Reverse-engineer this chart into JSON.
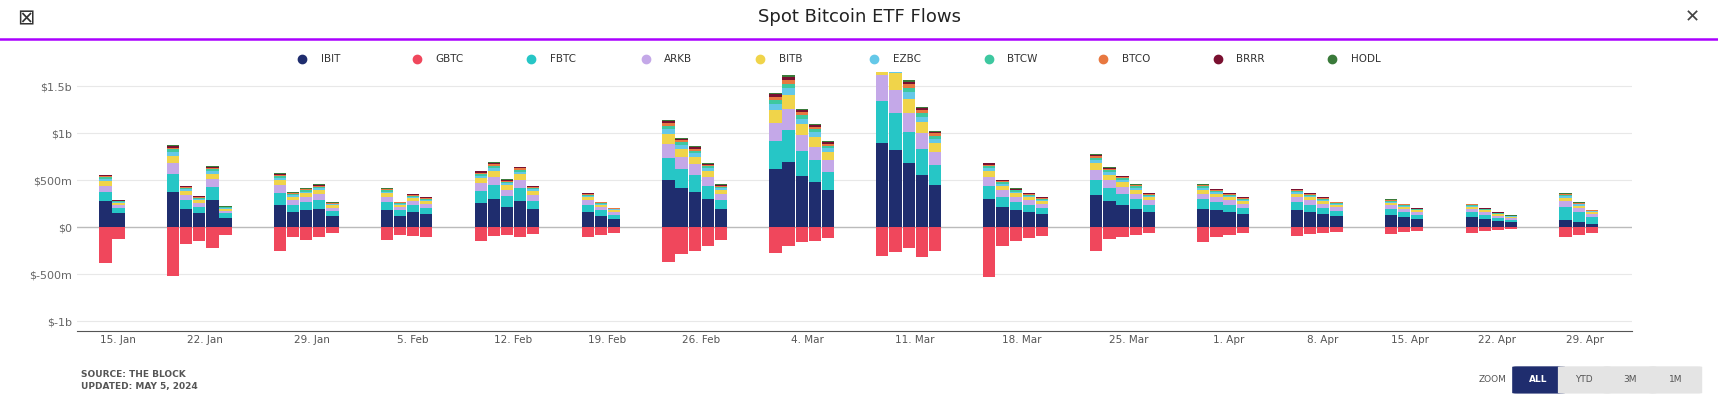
{
  "title": "Spot Bitcoin ETF Flows",
  "legend_items": [
    "IBIT",
    "GBTC",
    "FBTC",
    "ARKB",
    "BITB",
    "EZBC",
    "BTCW",
    "BTCO",
    "BRRR",
    "HODL"
  ],
  "legend_colors": [
    "#1f2d6e",
    "#f0475c",
    "#26c6c6",
    "#c4a8e8",
    "#f0d44a",
    "#64c8e8",
    "#3ec8a0",
    "#e87840",
    "#7a1030",
    "#3a7a3a"
  ],
  "x_labels": [
    "15. Jan",
    "22. Jan",
    "29. Jan",
    "5. Feb",
    "12. Feb",
    "19. Feb",
    "26. Feb",
    "4. Mar",
    "11. Mar",
    "18. Mar",
    "25. Mar",
    "1. Apr",
    "8. Apr",
    "15. Apr",
    "22. Apr",
    "29. Apr"
  ],
  "ytick_labels": [
    "$-1b",
    "$-500m",
    "$0",
    "$500m",
    "$1b",
    "$1.5b"
  ],
  "yticks": [
    -1000,
    -500,
    0,
    500,
    1000,
    1500
  ],
  "source_text": "SOURCE: THE BLOCK\nUPDATED: MAY 5, 2024",
  "purple_line_color": "#aa00ff",
  "bg_color": "#ffffff",
  "grid_color": "#e8e8e8",
  "weekly_data": {
    "15. Jan": [
      {
        "IBIT": 280,
        "GBTC": -380,
        "FBTC": 100,
        "ARKB": 60,
        "BITB": 50,
        "EZBC": 25,
        "BTCW": 18,
        "BTCO": 12,
        "BRRR": 8,
        "HODL": 5
      },
      {
        "IBIT": 150,
        "GBTC": -120,
        "FBTC": 60,
        "ARKB": 30,
        "BITB": 20,
        "EZBC": 10,
        "BTCW": 8,
        "BTCO": 5,
        "BRRR": 4,
        "HODL": 3
      }
    ],
    "22. Jan": [
      {
        "IBIT": 380,
        "GBTC": -520,
        "FBTC": 190,
        "ARKB": 110,
        "BITB": 80,
        "EZBC": 40,
        "BTCW": 28,
        "BTCO": 20,
        "BRRR": 15,
        "HODL": 10
      },
      {
        "IBIT": 200,
        "GBTC": -180,
        "FBTC": 90,
        "ARKB": 55,
        "BITB": 40,
        "EZBC": 18,
        "BTCW": 14,
        "BTCO": 10,
        "BRRR": 8,
        "HODL": 5
      },
      {
        "IBIT": 150,
        "GBTC": -140,
        "FBTC": 70,
        "ARKB": 40,
        "BITB": 30,
        "EZBC": 15,
        "BTCW": 10,
        "BTCO": 8,
        "BRRR": 6,
        "HODL": 4
      },
      {
        "IBIT": 290,
        "GBTC": -220,
        "FBTC": 140,
        "ARKB": 80,
        "BITB": 60,
        "EZBC": 28,
        "BTCW": 20,
        "BTCO": 15,
        "BRRR": 12,
        "HODL": 8
      },
      {
        "IBIT": 100,
        "GBTC": -80,
        "FBTC": 50,
        "ARKB": 28,
        "BITB": 18,
        "EZBC": 9,
        "BTCW": 7,
        "BTCO": 5,
        "BRRR": 4,
        "HODL": 2
      }
    ],
    "29. Jan": [
      {
        "IBIT": 240,
        "GBTC": -250,
        "FBTC": 130,
        "ARKB": 80,
        "BITB": 55,
        "EZBC": 25,
        "BTCW": 18,
        "BTCO": 13,
        "BRRR": 10,
        "HODL": 7
      },
      {
        "IBIT": 160,
        "GBTC": -100,
        "FBTC": 80,
        "ARKB": 50,
        "BITB": 35,
        "EZBC": 16,
        "BTCW": 12,
        "BTCO": 9,
        "BRRR": 7,
        "HODL": 4
      },
      {
        "IBIT": 180,
        "GBTC": -130,
        "FBTC": 90,
        "ARKB": 55,
        "BITB": 38,
        "EZBC": 18,
        "BTCW": 13,
        "BTCO": 10,
        "BRRR": 8,
        "HODL": 5
      },
      {
        "IBIT": 200,
        "GBTC": -100,
        "FBTC": 95,
        "ARKB": 60,
        "BITB": 42,
        "EZBC": 20,
        "BTCW": 14,
        "BTCO": 11,
        "BRRR": 9,
        "HODL": 6
      },
      {
        "IBIT": 120,
        "GBTC": -60,
        "FBTC": 55,
        "ARKB": 35,
        "BITB": 24,
        "EZBC": 11,
        "BTCW": 8,
        "BTCO": 6,
        "BRRR": 5,
        "HODL": 3
      }
    ],
    "5. Feb": [
      {
        "IBIT": 180,
        "GBTC": -130,
        "FBTC": 90,
        "ARKB": 55,
        "BITB": 38,
        "EZBC": 18,
        "BTCW": 13,
        "BTCO": 10,
        "BRRR": 8,
        "HODL": 5
      },
      {
        "IBIT": 120,
        "GBTC": -80,
        "FBTC": 60,
        "ARKB": 36,
        "BITB": 25,
        "EZBC": 12,
        "BTCW": 8,
        "BTCO": 6,
        "BRRR": 5,
        "HODL": 3
      },
      {
        "IBIT": 160,
        "GBTC": -90,
        "FBTC": 75,
        "ARKB": 45,
        "BITB": 32,
        "EZBC": 15,
        "BTCW": 11,
        "BTCO": 8,
        "BRRR": 6,
        "HODL": 4
      },
      {
        "IBIT": 140,
        "GBTC": -100,
        "FBTC": 70,
        "ARKB": 42,
        "BITB": 29,
        "EZBC": 14,
        "BTCW": 10,
        "BTCO": 7,
        "BRRR": 6,
        "HODL": 4
      }
    ],
    "12. Feb": [
      {
        "IBIT": 260,
        "GBTC": -140,
        "FBTC": 130,
        "ARKB": 80,
        "BITB": 55,
        "EZBC": 26,
        "BTCW": 18,
        "BTCO": 14,
        "BRRR": 11,
        "HODL": 7
      },
      {
        "IBIT": 300,
        "GBTC": -90,
        "FBTC": 150,
        "ARKB": 90,
        "BITB": 64,
        "EZBC": 30,
        "BTCW": 21,
        "BTCO": 16,
        "BRRR": 12,
        "HODL": 8
      },
      {
        "IBIT": 220,
        "GBTC": -80,
        "FBTC": 110,
        "ARKB": 68,
        "BITB": 48,
        "EZBC": 22,
        "BTCW": 16,
        "BTCO": 12,
        "BRRR": 9,
        "HODL": 6
      },
      {
        "IBIT": 280,
        "GBTC": -100,
        "FBTC": 140,
        "ARKB": 85,
        "BITB": 60,
        "EZBC": 28,
        "BTCW": 20,
        "BTCO": 15,
        "BRRR": 11,
        "HODL": 7
      },
      {
        "IBIT": 190,
        "GBTC": -70,
        "FBTC": 95,
        "ARKB": 58,
        "BITB": 41,
        "EZBC": 19,
        "BTCW": 14,
        "BTCO": 10,
        "BRRR": 8,
        "HODL": 5
      }
    ],
    "19. Feb": [
      {
        "IBIT": 160,
        "GBTC": -100,
        "FBTC": 80,
        "ARKB": 48,
        "BITB": 34,
        "EZBC": 16,
        "BTCW": 11,
        "BTCO": 9,
        "BRRR": 7,
        "HODL": 4
      },
      {
        "IBIT": 120,
        "GBTC": -80,
        "FBTC": 60,
        "ARKB": 36,
        "BITB": 25,
        "EZBC": 12,
        "BTCW": 8,
        "BTCO": 6,
        "BRRR": 5,
        "HODL": 3
      },
      {
        "IBIT": 90,
        "GBTC": -60,
        "FBTC": 45,
        "ARKB": 27,
        "BITB": 19,
        "EZBC": 9,
        "BTCW": 6,
        "BTCO": 5,
        "BRRR": 4,
        "HODL": 2
      }
    ],
    "26. Feb": [
      {
        "IBIT": 500,
        "GBTC": -370,
        "FBTC": 240,
        "ARKB": 150,
        "BITB": 105,
        "EZBC": 50,
        "BTCW": 35,
        "BTCO": 26,
        "BRRR": 20,
        "HODL": 14
      },
      {
        "IBIT": 420,
        "GBTC": -280,
        "FBTC": 200,
        "ARKB": 125,
        "BITB": 88,
        "EZBC": 42,
        "BTCW": 29,
        "BTCO": 22,
        "BRRR": 17,
        "HODL": 11
      },
      {
        "IBIT": 380,
        "GBTC": -250,
        "FBTC": 180,
        "ARKB": 112,
        "BITB": 79,
        "EZBC": 38,
        "BTCW": 26,
        "BTCO": 20,
        "BRRR": 15,
        "HODL": 10
      },
      {
        "IBIT": 300,
        "GBTC": -200,
        "FBTC": 145,
        "ARKB": 90,
        "BITB": 63,
        "EZBC": 30,
        "BTCW": 21,
        "BTCO": 16,
        "BRRR": 12,
        "HODL": 8
      },
      {
        "IBIT": 200,
        "GBTC": -130,
        "FBTC": 96,
        "ARKB": 60,
        "BITB": 42,
        "EZBC": 20,
        "BTCW": 14,
        "BTCO": 11,
        "BRRR": 8,
        "HODL": 5
      }
    ],
    "4. Mar": [
      {
        "IBIT": 620,
        "GBTC": -270,
        "FBTC": 300,
        "ARKB": 190,
        "BITB": 135,
        "EZBC": 64,
        "BTCW": 44,
        "BTCO": 34,
        "BRRR": 26,
        "HODL": 17
      },
      {
        "IBIT": 700,
        "GBTC": -200,
        "FBTC": 340,
        "ARKB": 215,
        "BITB": 152,
        "EZBC": 72,
        "BTCW": 50,
        "BTCO": 38,
        "BRRR": 29,
        "HODL": 19
      },
      {
        "IBIT": 550,
        "GBTC": -160,
        "FBTC": 265,
        "ARKB": 167,
        "BITB": 118,
        "EZBC": 56,
        "BTCW": 39,
        "BTCO": 29,
        "BRRR": 22,
        "HODL": 15
      },
      {
        "IBIT": 480,
        "GBTC": -140,
        "FBTC": 232,
        "ARKB": 146,
        "BITB": 103,
        "EZBC": 49,
        "BTCW": 34,
        "BTCO": 26,
        "BRRR": 20,
        "HODL": 13
      },
      {
        "IBIT": 400,
        "GBTC": -110,
        "FBTC": 193,
        "ARKB": 122,
        "BITB": 86,
        "EZBC": 41,
        "BTCW": 28,
        "BTCO": 21,
        "BRRR": 16,
        "HODL": 11
      }
    ],
    "11. Mar": [
      {
        "IBIT": 900,
        "GBTC": -300,
        "FBTC": 440,
        "ARKB": 278,
        "BITB": 196,
        "EZBC": 93,
        "BTCW": 65,
        "BTCO": 49,
        "BRRR": 37,
        "HODL": 25
      },
      {
        "IBIT": 820,
        "GBTC": -260,
        "FBTC": 395,
        "ARKB": 250,
        "BITB": 176,
        "EZBC": 84,
        "BTCW": 58,
        "BTCO": 44,
        "BRRR": 34,
        "HODL": 22
      },
      {
        "IBIT": 680,
        "GBTC": -220,
        "FBTC": 330,
        "ARKB": 208,
        "BITB": 147,
        "EZBC": 70,
        "BTCW": 49,
        "BTCO": 37,
        "BRRR": 28,
        "HODL": 18
      },
      {
        "IBIT": 560,
        "GBTC": -310,
        "FBTC": 270,
        "ARKB": 170,
        "BITB": 120,
        "EZBC": 57,
        "BTCW": 40,
        "BTCO": 30,
        "BRRR": 23,
        "HODL": 15
      },
      {
        "IBIT": 450,
        "GBTC": -250,
        "FBTC": 215,
        "ARKB": 136,
        "BITB": 96,
        "EZBC": 46,
        "BTCW": 32,
        "BTCO": 24,
        "BRRR": 18,
        "HODL": 12
      }
    ],
    "18. Mar": [
      {
        "IBIT": 300,
        "GBTC": -530,
        "FBTC": 145,
        "ARKB": 91,
        "BITB": 64,
        "EZBC": 31,
        "BTCW": 21,
        "BTCO": 16,
        "BRRR": 12,
        "HODL": 8
      },
      {
        "IBIT": 220,
        "GBTC": -200,
        "FBTC": 107,
        "ARKB": 67,
        "BITB": 47,
        "EZBC": 22,
        "BTCW": 16,
        "BTCO": 12,
        "BRRR": 9,
        "HODL": 6
      },
      {
        "IBIT": 180,
        "GBTC": -140,
        "FBTC": 87,
        "ARKB": 55,
        "BITB": 39,
        "EZBC": 18,
        "BTCW": 13,
        "BTCO": 10,
        "BRRR": 7,
        "HODL": 5
      },
      {
        "IBIT": 160,
        "GBTC": -110,
        "FBTC": 78,
        "ARKB": 49,
        "BITB": 34,
        "EZBC": 16,
        "BTCW": 11,
        "BTCO": 9,
        "BRRR": 7,
        "HODL": 4
      },
      {
        "IBIT": 140,
        "GBTC": -90,
        "FBTC": 68,
        "ARKB": 43,
        "BITB": 30,
        "EZBC": 14,
        "BTCW": 10,
        "BTCO": 7,
        "BRRR": 6,
        "HODL": 4
      }
    ],
    "25. Mar": [
      {
        "IBIT": 340,
        "GBTC": -250,
        "FBTC": 165,
        "ARKB": 104,
        "BITB": 73,
        "EZBC": 35,
        "BTCW": 24,
        "BTCO": 18,
        "BRRR": 14,
        "HODL": 9
      },
      {
        "IBIT": 280,
        "GBTC": -120,
        "FBTC": 135,
        "ARKB": 85,
        "BITB": 60,
        "EZBC": 28,
        "BTCW": 20,
        "BTCO": 15,
        "BRRR": 11,
        "HODL": 7
      },
      {
        "IBIT": 240,
        "GBTC": -100,
        "FBTC": 116,
        "ARKB": 73,
        "BITB": 51,
        "EZBC": 24,
        "BTCW": 17,
        "BTCO": 13,
        "BRRR": 10,
        "HODL": 6
      },
      {
        "IBIT": 200,
        "GBTC": -80,
        "FBTC": 97,
        "ARKB": 61,
        "BITB": 43,
        "EZBC": 20,
        "BTCW": 14,
        "BTCO": 11,
        "BRRR": 8,
        "HODL": 5
      },
      {
        "IBIT": 160,
        "GBTC": -60,
        "FBTC": 77,
        "ARKB": 49,
        "BITB": 34,
        "EZBC": 16,
        "BTCW": 11,
        "BTCO": 9,
        "BRRR": 7,
        "HODL": 4
      }
    ],
    "1. Apr": [
      {
        "IBIT": 200,
        "GBTC": -160,
        "FBTC": 97,
        "ARKB": 61,
        "BITB": 43,
        "EZBC": 20,
        "BTCW": 14,
        "BTCO": 11,
        "BRRR": 8,
        "HODL": 5
      },
      {
        "IBIT": 180,
        "GBTC": -100,
        "FBTC": 87,
        "ARKB": 55,
        "BITB": 38,
        "EZBC": 18,
        "BTCW": 13,
        "BTCO": 10,
        "BRRR": 7,
        "HODL": 5
      },
      {
        "IBIT": 160,
        "GBTC": -80,
        "FBTC": 77,
        "ARKB": 49,
        "BITB": 34,
        "EZBC": 16,
        "BTCW": 11,
        "BTCO": 9,
        "BRRR": 7,
        "HODL": 4
      },
      {
        "IBIT": 140,
        "GBTC": -60,
        "FBTC": 68,
        "ARKB": 43,
        "BITB": 30,
        "EZBC": 14,
        "BTCW": 10,
        "BTCO": 7,
        "BRRR": 6,
        "HODL": 4
      }
    ],
    "8. Apr": [
      {
        "IBIT": 180,
        "GBTC": -90,
        "FBTC": 87,
        "ARKB": 55,
        "BITB": 38,
        "EZBC": 18,
        "BTCW": 13,
        "BTCO": 10,
        "BRRR": 7,
        "HODL": 5
      },
      {
        "IBIT": 160,
        "GBTC": -70,
        "FBTC": 77,
        "ARKB": 49,
        "BITB": 34,
        "EZBC": 16,
        "BTCW": 11,
        "BTCO": 9,
        "BRRR": 7,
        "HODL": 4
      },
      {
        "IBIT": 140,
        "GBTC": -55,
        "FBTC": 68,
        "ARKB": 43,
        "BITB": 30,
        "EZBC": 14,
        "BTCW": 10,
        "BTCO": 7,
        "BRRR": 6,
        "HODL": 4
      },
      {
        "IBIT": 120,
        "GBTC": -45,
        "FBTC": 58,
        "ARKB": 37,
        "BITB": 26,
        "EZBC": 12,
        "BTCW": 8,
        "BTCO": 6,
        "BRRR": 5,
        "HODL": 3
      }
    ],
    "15. Apr": [
      {
        "IBIT": 130,
        "GBTC": -70,
        "FBTC": 63,
        "ARKB": 40,
        "BITB": 28,
        "EZBC": 13,
        "BTCW": 9,
        "BTCO": 7,
        "BRRR": 5,
        "HODL": 3
      },
      {
        "IBIT": 110,
        "GBTC": -50,
        "FBTC": 53,
        "ARKB": 34,
        "BITB": 24,
        "EZBC": 11,
        "BTCW": 8,
        "BTCO": 6,
        "BRRR": 4,
        "HODL": 3
      },
      {
        "IBIT": 90,
        "GBTC": -35,
        "FBTC": 44,
        "ARKB": 27,
        "BITB": 19,
        "EZBC": 9,
        "BTCW": 6,
        "BTCO": 5,
        "BRRR": 4,
        "HODL": 2
      }
    ],
    "22. Apr": [
      {
        "IBIT": 110,
        "GBTC": -60,
        "FBTC": 53,
        "ARKB": 34,
        "BITB": 24,
        "EZBC": 11,
        "BTCW": 8,
        "BTCO": 6,
        "BRRR": 4,
        "HODL": 3
      },
      {
        "IBIT": 90,
        "GBTC": -40,
        "FBTC": 44,
        "ARKB": 27,
        "BITB": 19,
        "EZBC": 9,
        "BTCW": 6,
        "BTCO": 5,
        "BRRR": 4,
        "HODL": 2
      },
      {
        "IBIT": 70,
        "GBTC": -30,
        "FBTC": 34,
        "ARKB": 21,
        "BITB": 15,
        "EZBC": 7,
        "BTCW": 5,
        "BTCO": 4,
        "BRRR": 3,
        "HODL": 2
      },
      {
        "IBIT": 55,
        "GBTC": -20,
        "FBTC": 27,
        "ARKB": 17,
        "BITB": 12,
        "EZBC": 6,
        "BTCW": 4,
        "BTCO": 3,
        "BRRR": 2,
        "HODL": 1
      }
    ],
    "29. Apr": [
      {
        "IBIT": 80,
        "GBTC": -100,
        "FBTC": 140,
        "ARKB": 60,
        "BITB": 35,
        "EZBC": 18,
        "BTCW": 12,
        "BTCO": 8,
        "BRRR": 6,
        "HODL": 4
      },
      {
        "IBIT": 60,
        "GBTC": -80,
        "FBTC": 100,
        "ARKB": 45,
        "BITB": 26,
        "EZBC": 13,
        "BTCW": 9,
        "BTCO": 6,
        "BRRR": 5,
        "HODL": 3
      },
      {
        "IBIT": 40,
        "GBTC": -60,
        "FBTC": 70,
        "ARKB": 32,
        "BITB": 19,
        "EZBC": 9,
        "BTCW": 6,
        "BTCO": 4,
        "BRRR": 3,
        "HODL": 2
      }
    ]
  }
}
